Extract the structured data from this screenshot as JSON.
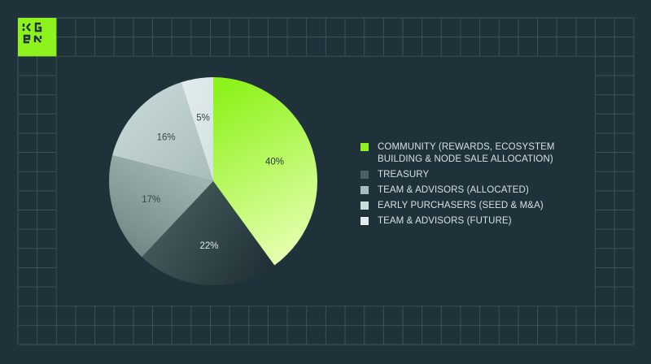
{
  "brand": {
    "logo_text": "KGEN",
    "logo_color": "#8ef21c"
  },
  "colors": {
    "background": "#1f323a",
    "grid": "#3c5158"
  },
  "chart_data": {
    "type": "pie",
    "start": "top",
    "direction": "clockwise",
    "slices": [
      {
        "label": "COMMUNITY (REWARDS, ECOSYSTEM BUILDING & NODE SALE ALLOCATION)",
        "value": 40,
        "data_label": "40%",
        "color": "#8ef21c",
        "color2": "#e6ffb0",
        "label_color": "#2a3a3a"
      },
      {
        "label": "TREASURY",
        "value": 22,
        "data_label": "22%",
        "color": "#4a605f",
        "color2": "#1f3036",
        "label_color": "#dfe8ea"
      },
      {
        "label": "TEAM & ADVISORS (ALLOCATED)",
        "value": 17,
        "data_label": "17%",
        "color": "#a9bbbb",
        "color2": "#6f8584",
        "label_color": "#34474a"
      },
      {
        "label": "EARLY PURCHASERS (SEED & M&A)",
        "value": 16,
        "data_label": "16%",
        "color": "#ccdcdc",
        "color2": "#a9bcbc",
        "label_color": "#34474a"
      },
      {
        "label": "TEAM & ADVISORS (FUTURE)",
        "value": 5,
        "data_label": "5%",
        "color": "#e2ecee",
        "color2": "#d3e1e3",
        "label_color": "#34474a"
      }
    ],
    "legend": "right"
  }
}
